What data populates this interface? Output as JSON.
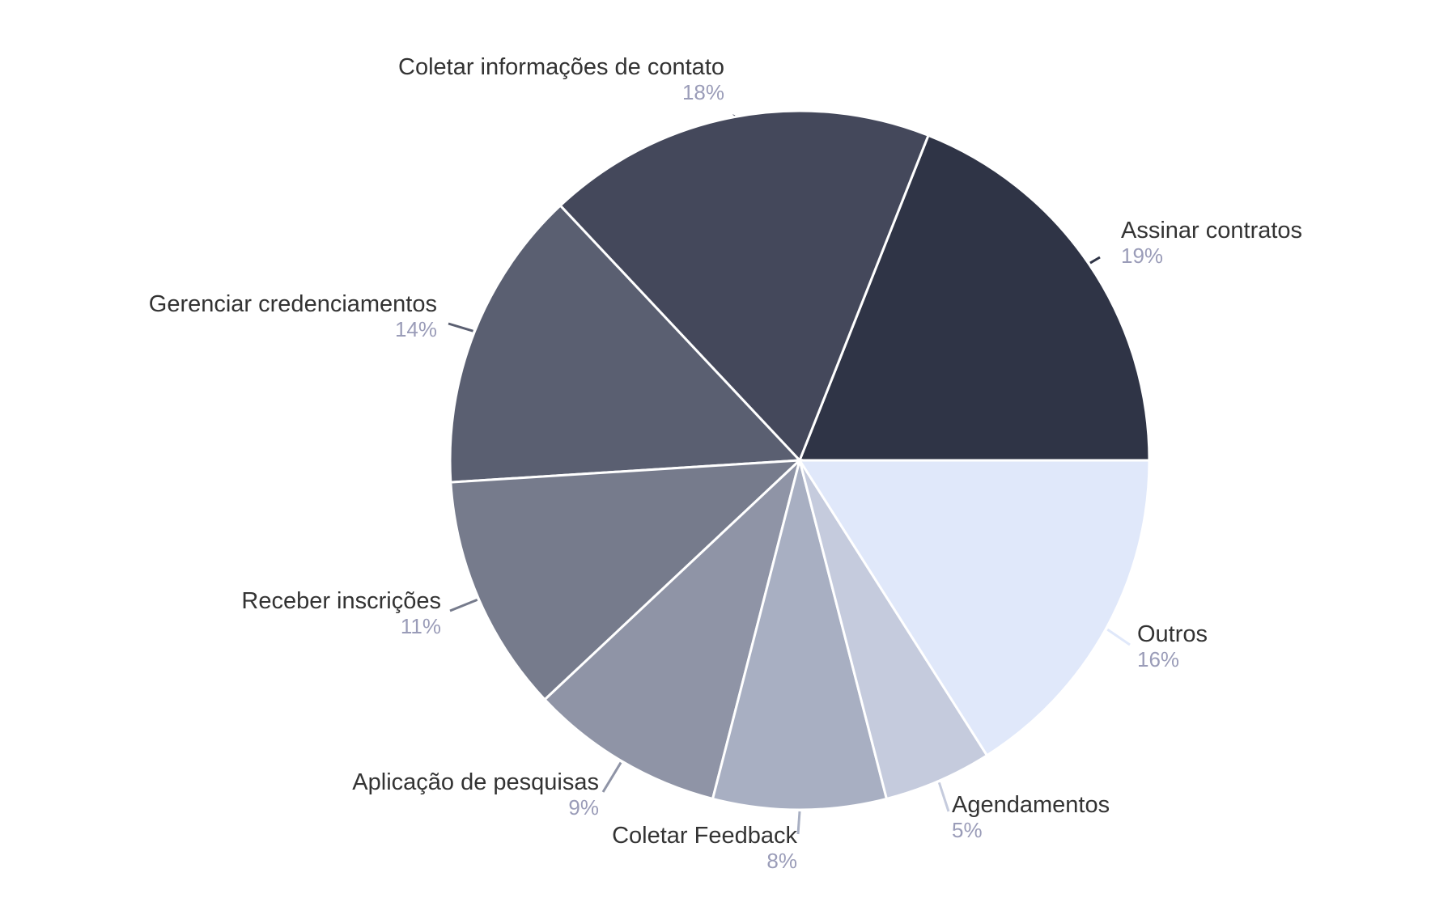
{
  "chart_data": {
    "type": "pie",
    "title": "",
    "start_angle_deg": 0,
    "direction": "counterclockwise",
    "slices": [
      {
        "label": "Assinar contratos",
        "value": 19,
        "value_label": "19%",
        "color": "#2f3446"
      },
      {
        "label": "Coletar informações de contato",
        "value": 18,
        "value_label": "18%",
        "color": "#44485b"
      },
      {
        "label": "Gerenciar credenciamentos",
        "value": 14,
        "value_label": "14%",
        "color": "#5a5f71"
      },
      {
        "label": "Receber inscrições",
        "value": 11,
        "value_label": "11%",
        "color": "#767b8c"
      },
      {
        "label": "Aplicação de pesquisas",
        "value": 9,
        "value_label": "9%",
        "color": "#8f94a6"
      },
      {
        "label": "Coletar Feedback",
        "value": 8,
        "value_label": "8%",
        "color": "#a8afc2"
      },
      {
        "label": "Agendamentos",
        "value": 5,
        "value_label": "5%",
        "color": "#c5cbdd"
      },
      {
        "label": "Outros",
        "value": 16,
        "value_label": "16%",
        "color": "#e0e8fa"
      }
    ]
  }
}
